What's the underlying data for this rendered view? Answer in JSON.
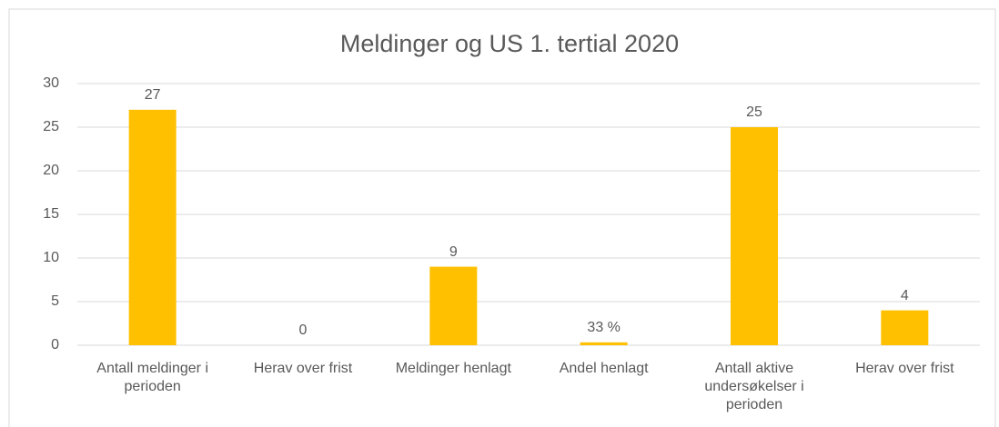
{
  "chart_data": {
    "type": "bar",
    "title": "Meldinger og US 1. tertial 2020",
    "categories": [
      "Antall meldinger i perioden",
      "Herav over frist",
      "Meldinger henlagt",
      "Andel henlagt",
      "Antall aktive undersøkelser i perioden",
      "Herav over frist"
    ],
    "values": [
      27,
      0,
      9,
      0.33,
      25,
      4
    ],
    "value_labels": [
      "27",
      "0",
      "9",
      "33 %",
      "25",
      "4"
    ],
    "color": "#ffc000",
    "ylim": [
      0,
      30
    ],
    "yticks": [
      0,
      5,
      10,
      15,
      20,
      25,
      30
    ],
    "grid": true
  }
}
